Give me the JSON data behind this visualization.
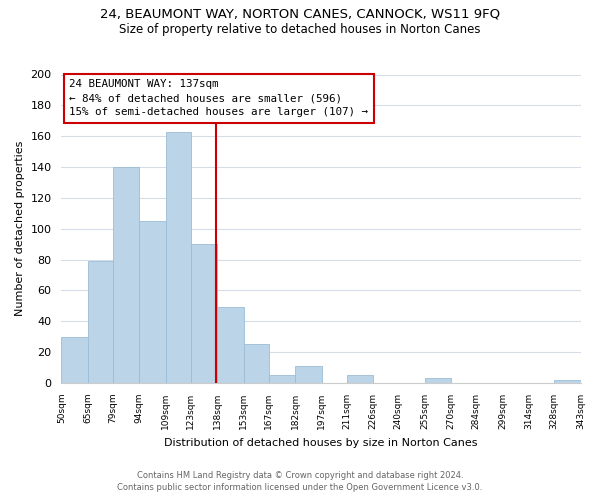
{
  "title1": "24, BEAUMONT WAY, NORTON CANES, CANNOCK, WS11 9FQ",
  "title2": "Size of property relative to detached houses in Norton Canes",
  "xlabel": "Distribution of detached houses by size in Norton Canes",
  "ylabel": "Number of detached properties",
  "annotation_line1": "24 BEAUMONT WAY: 137sqm",
  "annotation_line2": "← 84% of detached houses are smaller (596)",
  "annotation_line3": "15% of semi-detached houses are larger (107) →",
  "property_line_x": 137,
  "bar_color": "#bcd4e8",
  "bar_edge_color": "#9bbdd6",
  "line_color": "#cc0000",
  "annotation_box_edge": "#cc0000",
  "footer1": "Contains HM Land Registry data © Crown copyright and database right 2024.",
  "footer2": "Contains public sector information licensed under the Open Government Licence v3.0.",
  "bins": [
    50,
    65,
    79,
    94,
    109,
    123,
    138,
    153,
    167,
    182,
    197,
    211,
    226,
    240,
    255,
    270,
    284,
    299,
    314,
    328,
    343
  ],
  "counts": [
    30,
    79,
    140,
    105,
    163,
    90,
    49,
    25,
    5,
    11,
    0,
    5,
    0,
    0,
    3,
    0,
    0,
    0,
    0,
    2
  ],
  "ylim": [
    0,
    200
  ],
  "yticks": [
    0,
    20,
    40,
    60,
    80,
    100,
    120,
    140,
    160,
    180,
    200
  ],
  "tick_labels": [
    "50sqm",
    "65sqm",
    "79sqm",
    "94sqm",
    "109sqm",
    "123sqm",
    "138sqm",
    "153sqm",
    "167sqm",
    "182sqm",
    "197sqm",
    "211sqm",
    "226sqm",
    "240sqm",
    "255sqm",
    "270sqm",
    "284sqm",
    "299sqm",
    "314sqm",
    "328sqm",
    "343sqm"
  ],
  "grid_color": "#d5dde8",
  "title1_fontsize": 9.5,
  "title2_fontsize": 8.5,
  "ylabel_fontsize": 8,
  "xlabel_fontsize": 8
}
